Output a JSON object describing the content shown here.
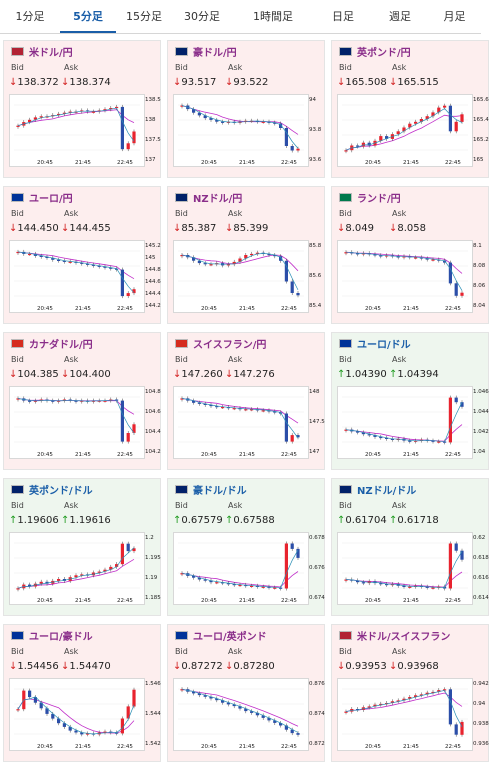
{
  "tabs": [
    {
      "label": "1分足",
      "active": false
    },
    {
      "label": "5分足",
      "active": true
    },
    {
      "label": "15分足",
      "active": false
    },
    {
      "label": "30分足",
      "active": false
    },
    {
      "label": "1時間足",
      "active": false
    },
    {
      "label": "日足",
      "active": false
    },
    {
      "label": "週足",
      "active": false
    },
    {
      "label": "月足",
      "active": false
    }
  ],
  "labels": {
    "bid": "Bid",
    "ask": "Ask"
  },
  "colors": {
    "up": "#1e9a1e",
    "down": "#d32020",
    "bullish_candle": "#e8232e",
    "bearish_candle": "#2b4ea8",
    "ma_short": "#2a8fb5",
    "ma_long": "#c02ec9"
  },
  "pairs": [
    {
      "name": "米ドル/円",
      "direction": "down",
      "flag_icon": "us-flag-icon",
      "flag_color": "#b22234",
      "bid": "138.372",
      "ask": "138.374",
      "yticks": [
        "138.5",
        "138",
        "137.5",
        "137"
      ],
      "xticks": [
        "20:45",
        "21:45",
        "22:45"
      ],
      "trend": [
        0.0,
        0.3,
        0.5,
        0.7,
        0.8,
        0.8,
        0.9,
        1.0,
        1.1,
        1.2,
        1.2,
        1.3,
        1.2,
        1.2,
        1.3,
        1.4,
        1.5,
        1.6,
        -2.0,
        -1.5,
        -0.5
      ]
    },
    {
      "name": "豪ドル/円",
      "direction": "down",
      "flag_icon": "au-flag-icon",
      "flag_color": "#012169",
      "bid": "93.517",
      "ask": "93.522",
      "yticks": [
        "94",
        "93.8",
        "93.6"
      ],
      "xticks": [
        "20:45",
        "21:45",
        "22:45"
      ],
      "trend": [
        2.0,
        1.6,
        1.2,
        0.9,
        0.6,
        0.4,
        0.2,
        0.1,
        0.2,
        0.1,
        0.2,
        0.3,
        0.3,
        0.2,
        0.2,
        0.1,
        0.0,
        -0.5,
        -2.5,
        -3.0,
        -2.8
      ]
    },
    {
      "name": "英ポンド/円",
      "direction": "down",
      "flag_icon": "gb-flag-icon",
      "flag_color": "#012169",
      "bid": "165.508",
      "ask": "165.515",
      "yticks": [
        "165.6",
        "165.4",
        "165.2",
        "165"
      ],
      "xticks": [
        "20:45",
        "21:45",
        "22:45"
      ],
      "trend": [
        -2.0,
        -1.5,
        -1.6,
        -1.2,
        -1.5,
        -1.0,
        -0.5,
        -0.8,
        -0.3,
        0.0,
        0.4,
        0.8,
        1.0,
        1.3,
        1.6,
        2.0,
        2.5,
        2.7,
        0.0,
        1.0,
        1.8
      ]
    },
    {
      "name": "ユーロ/円",
      "direction": "down",
      "flag_icon": "eu-flag-icon",
      "flag_color": "#003399",
      "bid": "144.450",
      "ask": "144.455",
      "yticks": [
        "145.2",
        "145",
        "144.8",
        "144.6",
        "144.4",
        "144.2"
      ],
      "xticks": [
        "20:45",
        "21:45",
        "22:45"
      ],
      "trend": [
        2.0,
        1.8,
        1.8,
        1.6,
        1.5,
        1.4,
        1.2,
        1.1,
        1.0,
        1.0,
        0.9,
        0.8,
        0.7,
        0.6,
        0.5,
        0.4,
        0.3,
        0.2,
        -2.5,
        -2.2,
        -1.8
      ]
    },
    {
      "name": "NZドル/円",
      "direction": "down",
      "flag_icon": "nz-flag-icon",
      "flag_color": "#012169",
      "bid": "85.387",
      "ask": "85.399",
      "yticks": [
        "85.8",
        "85.6",
        "85.4"
      ],
      "xticks": [
        "20:45",
        "21:45",
        "22:45"
      ],
      "trend": [
        0.5,
        0.3,
        0.0,
        -0.2,
        -0.3,
        -0.3,
        -0.2,
        -0.4,
        -0.3,
        -0.1,
        0.2,
        0.5,
        0.6,
        0.7,
        0.6,
        0.5,
        0.4,
        0.0,
        -1.8,
        -2.8,
        -3.0
      ]
    },
    {
      "name": "ランド/円",
      "direction": "down",
      "flag_icon": "za-flag-icon",
      "flag_color": "#007a4d",
      "bid": "8.049",
      "ask": "8.058",
      "yticks": [
        "8.1",
        "8.08",
        "8.06",
        "8.04"
      ],
      "xticks": [
        "20:45",
        "21:45",
        "22:45"
      ],
      "trend": [
        1.5,
        1.4,
        1.3,
        1.4,
        1.3,
        1.2,
        1.1,
        1.2,
        1.1,
        1.0,
        1.1,
        1.0,
        1.0,
        0.9,
        0.8,
        0.8,
        0.7,
        0.5,
        -1.5,
        -2.7,
        -2.4
      ]
    },
    {
      "name": "カナダドル/円",
      "direction": "down",
      "flag_icon": "ca-flag-icon",
      "flag_color": "#d52b1e",
      "bid": "104.385",
      "ask": "104.400",
      "yticks": [
        "104.8",
        "104.6",
        "104.4",
        "104.2"
      ],
      "xticks": [
        "20:45",
        "21:45",
        "22:45"
      ],
      "trend": [
        1.2,
        1.0,
        0.9,
        1.0,
        1.1,
        1.0,
        0.9,
        1.0,
        1.1,
        1.0,
        0.9,
        1.0,
        0.9,
        1.0,
        1.0,
        1.0,
        1.1,
        1.0,
        -2.8,
        -2.0,
        -1.2
      ]
    },
    {
      "name": "スイスフラン/円",
      "direction": "down",
      "flag_icon": "ch-flag-icon",
      "flag_color": "#d52b1e",
      "bid": "147.260",
      "ask": "147.276",
      "yticks": [
        "148",
        "147.5",
        "147"
      ],
      "xticks": [
        "20:45",
        "21:45",
        "22:45"
      ],
      "trend": [
        2.0,
        1.8,
        1.6,
        1.5,
        1.4,
        1.3,
        1.2,
        1.2,
        1.1,
        1.1,
        1.0,
        1.0,
        1.0,
        0.9,
        0.9,
        0.8,
        0.7,
        0.6,
        -2.0,
        -1.4,
        -1.6
      ]
    },
    {
      "name": "ユーロ/ドル",
      "direction": "up",
      "flag_icon": "eu-us-flag-icon",
      "flag_color": "#003399",
      "bid": "1.04390",
      "ask": "1.04394",
      "yticks": [
        "1.046",
        "1.044",
        "1.042",
        "1.04"
      ],
      "xticks": [
        "20:45",
        "21:45",
        "22:45"
      ],
      "trend": [
        -1.0,
        -1.2,
        -1.3,
        -1.5,
        -1.6,
        -1.8,
        -1.9,
        -2.0,
        -2.1,
        -2.0,
        -2.2,
        -2.3,
        -2.2,
        -2.1,
        -2.2,
        -2.3,
        -2.3,
        -2.4,
        2.5,
        2.0,
        1.5
      ]
    },
    {
      "name": "英ポンド/ドル",
      "direction": "up",
      "flag_icon": "gb-us-flag-icon",
      "flag_color": "#012169",
      "bid": "1.19606",
      "ask": "1.19616",
      "yticks": [
        "1.2",
        "1.195",
        "1.19",
        "1.185"
      ],
      "xticks": [
        "20:45",
        "21:45",
        "22:45"
      ],
      "trend": [
        -2.0,
        -1.6,
        -1.8,
        -1.5,
        -1.3,
        -1.5,
        -1.2,
        -1.0,
        -1.2,
        -0.8,
        -0.6,
        -0.5,
        -0.6,
        -0.3,
        -0.2,
        0.0,
        0.3,
        0.6,
        2.8,
        2.0,
        2.3
      ]
    },
    {
      "name": "豪ドル/ドル",
      "direction": "up",
      "flag_icon": "au-us-flag-icon",
      "flag_color": "#012169",
      "bid": "0.67579",
      "ask": "0.67588",
      "yticks": [
        "0.678",
        "0.676",
        "0.674"
      ],
      "xticks": [
        "20:45",
        "21:45",
        "22:45"
      ],
      "trend": [
        -0.5,
        -0.8,
        -1.0,
        -1.2,
        -1.3,
        -1.5,
        -1.5,
        -1.6,
        -1.7,
        -1.8,
        -1.8,
        -1.9,
        -1.9,
        -2.0,
        -2.0,
        -2.1,
        -2.1,
        -2.2,
        2.8,
        2.2,
        1.2
      ]
    },
    {
      "name": "NZドル/ドル",
      "direction": "up",
      "flag_icon": "nz-us-flag-icon",
      "flag_color": "#012169",
      "bid": "0.61704",
      "ask": "0.61718",
      "yticks": [
        "0.62",
        "0.618",
        "0.616",
        "0.614"
      ],
      "xticks": [
        "20:45",
        "21:45",
        "22:45"
      ],
      "trend": [
        -1.2,
        -1.3,
        -1.5,
        -1.6,
        -1.4,
        -1.6,
        -1.7,
        -1.8,
        -1.7,
        -1.9,
        -2.0,
        -2.0,
        -1.9,
        -2.0,
        -2.1,
        -2.1,
        -2.0,
        -2.2,
        2.8,
        2.0,
        1.0
      ]
    },
    {
      "name": "ユーロ/豪ドル",
      "direction": "down",
      "flag_icon": "eu-au-flag-icon",
      "flag_color": "#003399",
      "bid": "1.54456",
      "ask": "1.54470",
      "yticks": [
        "1.546",
        "1.544",
        "1.542"
      ],
      "xticks": [
        "20:45",
        "21:45",
        "22:45"
      ],
      "trend": [
        0.5,
        2.5,
        1.8,
        1.2,
        0.6,
        0.0,
        -0.5,
        -1.0,
        -1.4,
        -1.8,
        -2.0,
        -2.2,
        -2.1,
        -2.2,
        -2.0,
        -1.9,
        -2.0,
        -2.1,
        -0.5,
        0.8,
        2.6
      ]
    },
    {
      "name": "ユーロ/英ポンド",
      "direction": "down",
      "flag_icon": "eu-gb-flag-icon",
      "flag_color": "#003399",
      "bid": "0.87272",
      "ask": "0.87280",
      "yticks": [
        "0.876",
        "0.874",
        "0.872"
      ],
      "xticks": [
        "20:45",
        "21:45",
        "22:45"
      ],
      "trend": [
        2.8,
        2.5,
        2.3,
        2.1,
        1.9,
        1.7,
        1.5,
        1.2,
        1.0,
        0.8,
        0.5,
        0.2,
        0.0,
        -0.3,
        -0.6,
        -0.9,
        -1.2,
        -1.5,
        -2.0,
        -2.4,
        -2.6
      ]
    },
    {
      "name": "米ドル/スイスフラン",
      "direction": "down",
      "flag_icon": "us-ch-flag-icon",
      "flag_color": "#b22234",
      "bid": "0.93953",
      "ask": "0.93968",
      "yticks": [
        "0.942",
        "0.94",
        "0.938",
        "0.936"
      ],
      "xticks": [
        "20:45",
        "21:45",
        "22:45"
      ],
      "trend": [
        0.0,
        0.3,
        0.2,
        0.5,
        0.6,
        0.8,
        0.9,
        1.0,
        1.2,
        1.3,
        1.5,
        1.7,
        1.9,
        2.0,
        2.2,
        2.3,
        2.5,
        2.6,
        -1.5,
        -2.7,
        -1.2
      ]
    }
  ]
}
